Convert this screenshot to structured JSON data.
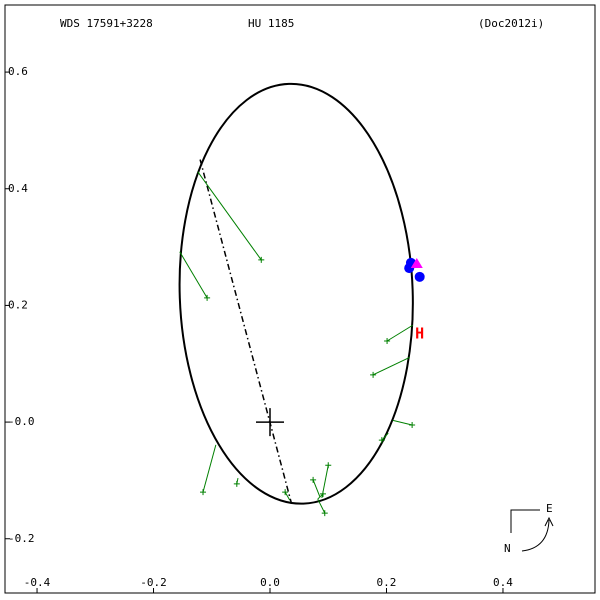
{
  "chart_data": {
    "type": "orbit",
    "title": "WDS 17591+3228",
    "subtitle": "HU 1185",
    "reference": "(Doc2012i)",
    "xlim": [
      -0.455,
      0.558
    ],
    "ylim": [
      -0.293,
      0.715
    ],
    "xticks": [
      -0.4,
      -0.2,
      {
        "value": 0,
        "label": "0.0"
      },
      0.2,
      0.4
    ],
    "yticks": [
      0.6,
      0.4,
      0.2,
      {
        "value": 0,
        "label": "-0.0"
      },
      -0.2
    ],
    "orbit": {
      "center_x": 0.045,
      "center_y": 0.22,
      "semi_x": 0.2,
      "semi_y": 0.36,
      "tilt_deg": -2,
      "color": "#000000"
    },
    "line_of_nodes": {
      "x": [
        -0.12,
        0.037
      ],
      "y": [
        0.45,
        -0.14
      ]
    },
    "primary": {
      "x": 0,
      "y": 0
    },
    "observations": {
      "color": "#008000",
      "x": [
        -0.015,
        -0.108,
        0.201,
        0.177,
        0.244,
        0.192,
        -0.115,
        -0.057,
        0.026,
        0.074,
        0.1,
        0.091,
        0.094
      ],
      "y": [
        0.278,
        0.213,
        0.139,
        0.081,
        -0.005,
        -0.031,
        -0.12,
        -0.106,
        -0.12,
        -0.099,
        -0.074,
        -0.123,
        -0.156
      ],
      "fit_x": [
        -0.124,
        -0.155,
        0.245,
        0.24,
        0.211,
        0.203,
        -0.093,
        -0.055,
        0.034,
        0.086,
        0.089,
        0.082,
        0.082
      ],
      "fit_y": [
        0.429,
        0.292,
        0.166,
        0.111,
        0.003,
        -0.019,
        -0.039,
        -0.096,
        -0.134,
        -0.129,
        -0.13,
        -0.132,
        -0.132
      ]
    },
    "recent_points": {
      "color": "#0000ff",
      "x": [
        0.239,
        0.257,
        0.242
      ],
      "y": [
        0.264,
        0.249,
        0.273
      ]
    },
    "predicted": {
      "color": "#ff00ff",
      "x": 0.252,
      "y": 0.271
    },
    "hipparcos": {
      "label": "H",
      "color": "#ff0000",
      "x": 0.257,
      "y": 0.151
    },
    "compass": {
      "east": "E",
      "north": "N"
    }
  }
}
